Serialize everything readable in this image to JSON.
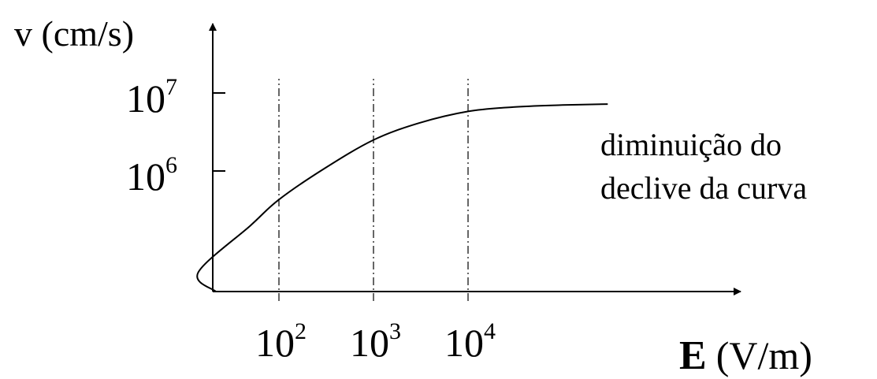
{
  "chart_data": {
    "type": "line",
    "title": "",
    "ylabel": "v (cm/s)",
    "xlabel": {
      "bold": "E",
      "rest": "(V/m)"
    },
    "x_scale": "log",
    "y_scale": "log",
    "y_ticks": [
      {
        "base": "10",
        "exp": "6",
        "value": 1000000
      },
      {
        "base": "10",
        "exp": "7",
        "value": 10000000
      }
    ],
    "x_ticks": [
      {
        "base": "10",
        "exp": "2",
        "value": 100
      },
      {
        "base": "10",
        "exp": "3",
        "value": 1000
      },
      {
        "base": "10",
        "exp": "4",
        "value": 10000
      }
    ],
    "gridlines": "vertical dash-dot at x ticks",
    "series": [
      {
        "color": "#000000",
        "x": [
          14,
          50,
          100,
          300,
          1000,
          3000,
          10000,
          30000,
          100000,
          300000
        ],
        "y": [
          50000,
          200000,
          430000,
          1070000,
          2500000,
          4100000,
          5800000,
          6600000,
          7000000,
          7200000
        ]
      }
    ],
    "annotation": [
      "diminuição do",
      "declive da curva"
    ]
  }
}
